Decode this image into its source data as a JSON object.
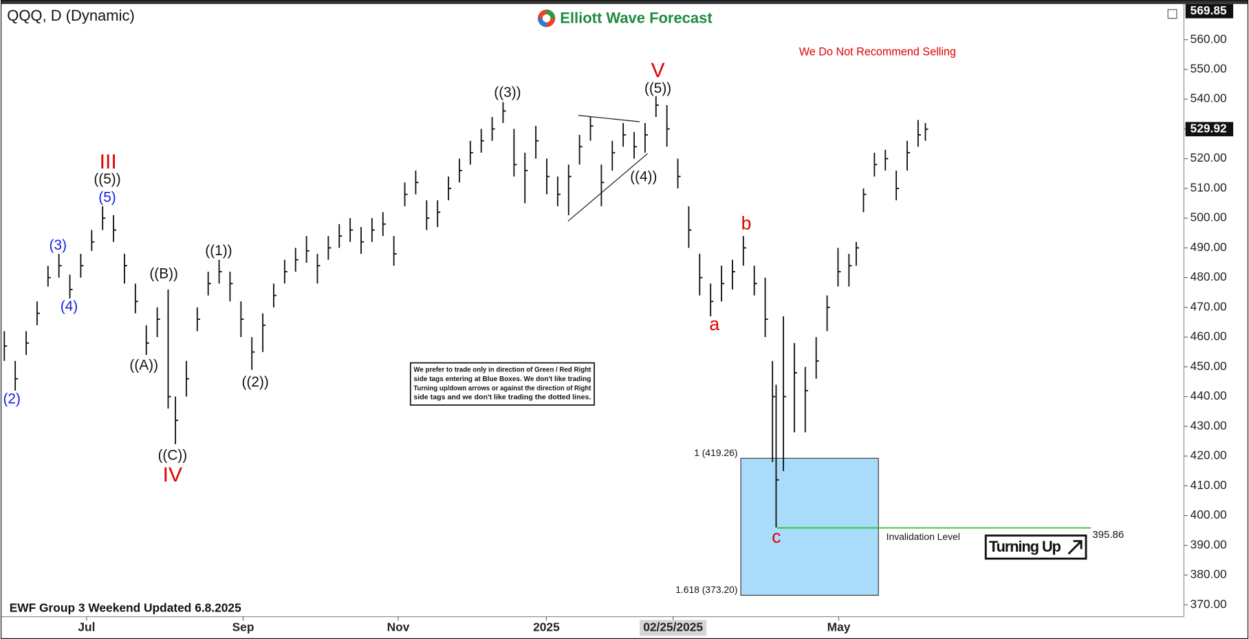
{
  "chart_data": {
    "type": "ohlc",
    "title": "QQQ, D (Dynamic)",
    "logo": "Elliott Wave Forecast",
    "top_note": "We Do Not Recommend Selling",
    "footer": "EWF Group 3 Weekend Updated 6.8.2025",
    "badge": "Turning Up",
    "disclaimer": [
      "We prefer to trade only in direction of Green / Red Right",
      "side tags entering at Blue Boxes. We don't like trading",
      "Turning up/down arrows or against the direction of Right",
      "side tags and we don't like trading the dotted lines."
    ],
    "color": "#111111",
    "x": [
      1,
      4,
      7,
      10,
      13,
      16,
      19,
      22,
      25,
      28,
      31,
      34,
      37,
      40,
      43,
      46,
      48,
      51,
      54,
      57,
      60,
      63,
      66,
      69,
      72,
      75,
      78,
      81,
      84,
      87,
      90,
      93,
      96,
      99,
      102,
      105,
      108,
      111,
      114,
      117,
      120,
      123,
      126,
      129,
      132,
      135,
      138,
      141,
      144,
      147,
      150,
      153,
      156,
      159,
      162,
      165,
      168,
      171,
      174,
      177,
      180,
      183,
      186,
      189,
      192,
      195,
      198,
      201,
      204,
      207,
      210,
      212,
      213,
      215,
      218,
      221,
      224,
      227,
      230,
      233,
      235,
      237,
      240,
      243,
      246,
      249,
      252,
      254
    ],
    "high": [
      462,
      452,
      462,
      472,
      484,
      488,
      481,
      488,
      496,
      504,
      501,
      488,
      478,
      464,
      470,
      476,
      440,
      452,
      470,
      482,
      486,
      482,
      472,
      460,
      468,
      478,
      486,
      490,
      494,
      488,
      494,
      498,
      500,
      497,
      500,
      502,
      494,
      512,
      516,
      506,
      506,
      514,
      520,
      526,
      530,
      534,
      539,
      530,
      522,
      531,
      520,
      514,
      518,
      528,
      534,
      518,
      526,
      532,
      529,
      532,
      541,
      538,
      520,
      504,
      488,
      478,
      484,
      486,
      494,
      484,
      480,
      452,
      444,
      467,
      458,
      450,
      460,
      474,
      490,
      488,
      492,
      510,
      522,
      523,
      516,
      526,
      533,
      532
    ],
    "low": [
      452,
      442,
      454,
      464,
      477,
      480,
      473,
      480,
      489,
      496,
      492,
      478,
      468,
      454,
      460,
      436,
      424,
      440,
      462,
      474,
      478,
      472,
      460,
      449,
      455,
      470,
      478,
      482,
      485,
      478,
      486,
      490,
      492,
      488,
      492,
      494,
      484,
      504,
      508,
      496,
      497,
      506,
      512,
      518,
      522,
      526,
      532,
      514,
      505,
      520,
      508,
      504,
      501,
      518,
      526,
      504,
      516,
      524,
      520,
      522,
      534,
      524,
      510,
      490,
      474,
      467,
      472,
      476,
      484,
      474,
      460,
      418,
      396,
      415,
      428,
      428,
      446,
      462,
      477,
      477,
      484,
      502,
      514,
      516,
      506,
      516,
      524,
      526
    ],
    "close": [
      457,
      446,
      458,
      468,
      480,
      484,
      476,
      484,
      492,
      500,
      496,
      484,
      472,
      458,
      466,
      440,
      432,
      446,
      466,
      478,
      482,
      478,
      466,
      455,
      464,
      474,
      482,
      486,
      489,
      484,
      490,
      494,
      496,
      492,
      496,
      498,
      488,
      508,
      512,
      500,
      502,
      510,
      516,
      522,
      526,
      530,
      536,
      518,
      516,
      526,
      514,
      508,
      514,
      524,
      531,
      512,
      522,
      528,
      524,
      528,
      538,
      530,
      514,
      496,
      480,
      472,
      478,
      482,
      490,
      478,
      466,
      440,
      412,
      440,
      448,
      442,
      452,
      470,
      482,
      484,
      490,
      508,
      518,
      520,
      510,
      522,
      528,
      529.92
    ],
    "last_price": 529.92,
    "top_price": 569.85,
    "xlim": [
      0,
      325
    ],
    "xticks": [
      {
        "value": 23.6,
        "label": "Jul"
      },
      {
        "value": 66.6,
        "label": "Sep"
      },
      {
        "value": 109.2,
        "label": "Nov"
      },
      {
        "value": 149.9,
        "label": "2025"
      },
      {
        "value": 184.7,
        "label": "02/25/2025"
      },
      {
        "value": 230.2,
        "label": "May"
      }
    ],
    "ylim": [
      366,
      572
    ],
    "yticks": [
      {
        "value": 370,
        "label": "370.00"
      },
      {
        "value": 380,
        "label": "380.00"
      },
      {
        "value": 390,
        "label": "390.00"
      },
      {
        "value": 400,
        "label": "400.00"
      },
      {
        "value": 410,
        "label": "410.00"
      },
      {
        "value": 420,
        "label": "420.00"
      },
      {
        "value": 430,
        "label": "430.00"
      },
      {
        "value": 440,
        "label": "440.00"
      },
      {
        "value": 450,
        "label": "450.00"
      },
      {
        "value": 460,
        "label": "460.00"
      },
      {
        "value": 470,
        "label": "470.00"
      },
      {
        "value": 480,
        "label": "480.00"
      },
      {
        "value": 490,
        "label": "490.00"
      },
      {
        "value": 500,
        "label": "500.00"
      },
      {
        "value": 510,
        "label": "510.00"
      },
      {
        "value": 520,
        "label": "520.00"
      },
      {
        "value": 530,
        "label": "530.00"
      },
      {
        "value": 540,
        "label": "540.00"
      },
      {
        "value": 550,
        "label": "550.00"
      },
      {
        "value": 560,
        "label": "560.00"
      }
    ],
    "blue_box": {
      "top": 419.26,
      "bottom": 373.2,
      "top_label": "1 (419.26)",
      "bottom_label": "1.618 (373.20)",
      "color": "#a8dcfa"
    },
    "invalidation": {
      "value": 395.86,
      "label": "Invalidation Level",
      "color": "#22c32b"
    },
    "annotations": [
      {
        "text": "III",
        "color": "#e00000"
      },
      {
        "text": "((5))",
        "color": "#111111"
      },
      {
        "text": "(5)",
        "color": "#1020e0"
      },
      {
        "text": "(3)",
        "color": "#1020e0"
      },
      {
        "text": "(4)",
        "color": "#1020e0"
      },
      {
        "text": "(2)",
        "color": "#1020e0"
      },
      {
        "text": "((A))",
        "color": "#111111"
      },
      {
        "text": "((B))",
        "color": "#111111"
      },
      {
        "text": "((C))",
        "color": "#111111"
      },
      {
        "text": "IV",
        "color": "#e00000"
      },
      {
        "text": "((1))",
        "color": "#111111"
      },
      {
        "text": "((2))",
        "color": "#111111"
      },
      {
        "text": "((3))",
        "color": "#111111"
      },
      {
        "text": "V",
        "color": "#e00000"
      },
      {
        "text": "((5))",
        "color": "#111111"
      },
      {
        "text": "((4))",
        "color": "#111111"
      },
      {
        "text": "a",
        "color": "#e00000"
      },
      {
        "text": "b",
        "color": "#e00000"
      },
      {
        "text": "c",
        "color": "#e00000"
      }
    ]
  }
}
